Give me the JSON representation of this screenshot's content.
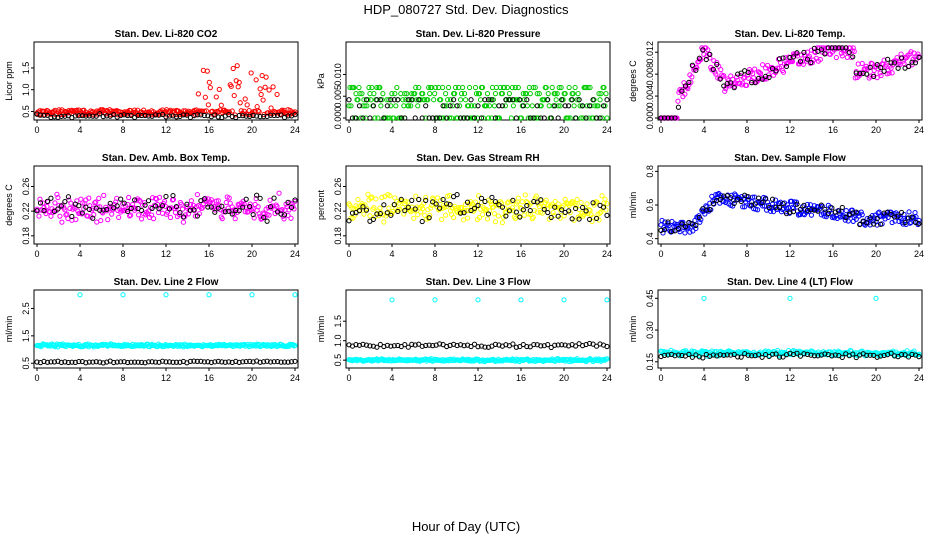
{
  "figure": {
    "title": "HDP_080727  Std. Dev. Diagnostics",
    "xlabel": "Hour of Day (UTC)"
  },
  "colors": {
    "black": "#000000",
    "red": "#ff0000",
    "green": "#00cc00",
    "magenta": "#ff00ff",
    "yellow": "#ffff00",
    "blue": "#0000ff",
    "cyan": "#00ffff"
  },
  "chart_data": [
    {
      "type": "scatter",
      "title": "Stan. Dev. Li-820 CO2",
      "ylabel": "Licor ppm",
      "xlim": [
        0,
        24
      ],
      "ylim": [
        0.35,
        2.05
      ],
      "xticks": [
        "0",
        "4",
        "8",
        "12",
        "16",
        "20",
        "24"
      ],
      "yticks": [
        "0.5",
        "1.0",
        "1.5"
      ],
      "series": [
        {
          "name": "main",
          "color": "#ff0000",
          "gen": {
            "kind": "co2",
            "base": 0.42,
            "spread": 0.12
          }
        },
        {
          "name": "black",
          "color": "#000000",
          "gen": {
            "kind": "flat",
            "base": 0.4,
            "spread": 0.05
          }
        }
      ]
    },
    {
      "type": "scatter",
      "title": "Stan. Dev. Li-820 Pressure",
      "ylabel": "kPa",
      "xlim": [
        0,
        24
      ],
      "ylim": [
        0,
        0.017
      ],
      "xticks": [
        "0",
        "4",
        "8",
        "12",
        "16",
        "20",
        "24"
      ],
      "yticks": [
        "0.000",
        "0.005",
        "0.010"
      ],
      "series": [
        {
          "name": "main",
          "color": "#00cc00",
          "gen": {
            "kind": "quant",
            "levels": [
              0,
              0.0028,
              0.0042,
              0.0056,
              0.007
            ]
          }
        },
        {
          "name": "black",
          "color": "#000000",
          "gen": {
            "kind": "quant",
            "levels": [
              0,
              0.0028,
              0.0042
            ]
          }
        }
      ]
    },
    {
      "type": "scatter",
      "title": "Stan. Dev. Li-820 Temp.",
      "ylabel": "degrees C",
      "xlim": [
        0,
        24
      ],
      "ylim": [
        0,
        0.0135
      ],
      "xticks": [
        "0",
        "4",
        "8",
        "12",
        "16",
        "20",
        "24"
      ],
      "yticks": [
        "0.000",
        "0.004",
        "0.008",
        "0.012"
      ],
      "series": [
        {
          "name": "main",
          "color": "#ff00ff",
          "gen": {
            "kind": "temp"
          }
        },
        {
          "name": "black",
          "color": "#000000",
          "gen": {
            "kind": "temp"
          }
        }
      ]
    },
    {
      "type": "scatter",
      "title": "Stan. Dev. Amb. Box Temp.",
      "ylabel": "degrees C",
      "xlim": [
        0,
        24
      ],
      "ylim": [
        0.17,
        0.29
      ],
      "xticks": [
        "0",
        "4",
        "8",
        "12",
        "16",
        "20",
        "24"
      ],
      "yticks": [
        "0.18",
        "0.22",
        "0.26"
      ],
      "series": [
        {
          "name": "main",
          "color": "#ff00ff",
          "gen": {
            "kind": "flat",
            "base": 0.225,
            "spread": 0.025
          }
        },
        {
          "name": "black",
          "color": "#000000",
          "gen": {
            "kind": "flat",
            "base": 0.225,
            "spread": 0.025
          }
        }
      ]
    },
    {
      "type": "scatter",
      "title": "Stan. Dev. Gas Stream RH",
      "ylabel": "percent",
      "xlim": [
        0,
        24
      ],
      "ylim": [
        0.17,
        0.29
      ],
      "xticks": [
        "0",
        "4",
        "8",
        "12",
        "16",
        "20",
        "24"
      ],
      "yticks": [
        "0.18",
        "0.22",
        "0.26"
      ],
      "series": [
        {
          "name": "main",
          "color": "#ffff00",
          "gen": {
            "kind": "flat",
            "base": 0.225,
            "spread": 0.025
          }
        },
        {
          "name": "black",
          "color": "#000000",
          "gen": {
            "kind": "flat",
            "base": 0.225,
            "spread": 0.025
          }
        }
      ]
    },
    {
      "type": "scatter",
      "title": "Stan. Dev. Sample Flow",
      "ylabel": "ml/min",
      "xlim": [
        0,
        24
      ],
      "ylim": [
        0.38,
        0.82
      ],
      "xticks": [
        "0",
        "4",
        "8",
        "12",
        "16",
        "20",
        "24"
      ],
      "yticks": [
        "0.4",
        "0.6",
        "0.8"
      ],
      "series": [
        {
          "name": "main",
          "color": "#0000ff",
          "gen": {
            "kind": "sample"
          }
        },
        {
          "name": "black",
          "color": "#000000",
          "gen": {
            "kind": "sample"
          }
        }
      ]
    },
    {
      "type": "scatter",
      "title": "Stan. Dev. Line 2 Flow",
      "ylabel": "ml/min",
      "xlim": [
        0,
        24
      ],
      "ylim": [
        0.4,
        3.1
      ],
      "xticks": [
        "0",
        "4",
        "8",
        "12",
        "16",
        "20",
        "24"
      ],
      "yticks": [
        "0.5",
        "1.5",
        "2.5"
      ],
      "series": [
        {
          "name": "main",
          "color": "#00ffff",
          "gen": {
            "kind": "flat",
            "base": 1.15,
            "spread": 0.06,
            "spikes": [
              4,
              8,
              12,
              16,
              20,
              24
            ],
            "spikeY": 3.0
          }
        },
        {
          "name": "black",
          "color": "#000000",
          "gen": {
            "kind": "flat",
            "base": 0.55,
            "spread": 0.04
          }
        }
      ]
    },
    {
      "type": "scatter",
      "title": "Stan. Dev. Line 3 Flow",
      "ylabel": "ml/min",
      "xlim": [
        0,
        24
      ],
      "ylim": [
        0.35,
        2.25
      ],
      "xticks": [
        "0",
        "4",
        "8",
        "12",
        "16",
        "20",
        "24"
      ],
      "yticks": [
        "0.5",
        "1.0",
        "1.5"
      ],
      "series": [
        {
          "name": "main",
          "color": "#00ffff",
          "gen": {
            "kind": "flat",
            "base": 0.5,
            "spread": 0.04,
            "spikes": [
              4,
              8,
              12,
              16,
              20,
              24
            ],
            "spikeY": 2.05
          }
        },
        {
          "name": "black",
          "color": "#000000",
          "gen": {
            "kind": "flat",
            "base": 0.88,
            "spread": 0.06
          }
        }
      ]
    },
    {
      "type": "scatter",
      "title": "Stan. Dev. Line 4 (LT) Flow",
      "ylabel": "ml/min",
      "xlim": [
        0,
        24
      ],
      "ylim": [
        0.13,
        0.48
      ],
      "xticks": [
        "0",
        "4",
        "8",
        "12",
        "16",
        "20",
        "24"
      ],
      "yticks": [
        "0.15",
        "0.30",
        "0.45"
      ],
      "series": [
        {
          "name": "main",
          "color": "#00ffff",
          "gen": {
            "kind": "flat",
            "base": 0.19,
            "spread": 0.015,
            "spikes": [
              4,
              12,
              20
            ],
            "spikeY": 0.45
          }
        },
        {
          "name": "black",
          "color": "#000000",
          "gen": {
            "kind": "flat",
            "base": 0.18,
            "spread": 0.012
          }
        }
      ]
    }
  ]
}
